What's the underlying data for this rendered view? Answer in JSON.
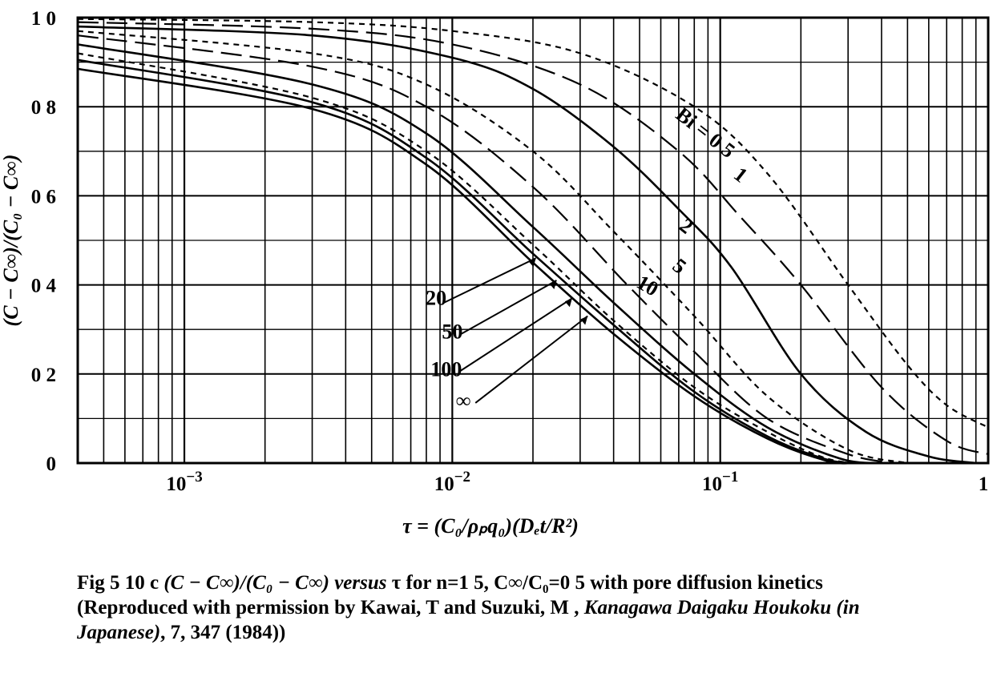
{
  "chart_data": {
    "type": "line",
    "x_scale": "log",
    "xlim": [
      0.0004,
      1
    ],
    "ylim": [
      0,
      1
    ],
    "x_tick_labels": [
      {
        "value": 0.001,
        "base": "10",
        "exp": "−3"
      },
      {
        "value": 0.01,
        "base": "10",
        "exp": "−2"
      },
      {
        "value": 0.1,
        "base": "10",
        "exp": "−1"
      },
      {
        "value": 1,
        "base": "1",
        "exp": ""
      }
    ],
    "y_tick_labels": [
      {
        "value": 0,
        "text": "0"
      },
      {
        "value": 0.2,
        "text": "0 2"
      },
      {
        "value": 0.4,
        "text": "0 4"
      },
      {
        "value": 0.6,
        "text": "0 6"
      },
      {
        "value": 0.8,
        "text": "0 8"
      },
      {
        "value": 1.0,
        "text": "1 0"
      }
    ],
    "xlabel": "τ = (C₀/ρₚq₀)(Dₑt/R²)",
    "ylabel": "(C − C∞)/(C₀ − C∞)",
    "grid": true,
    "series": [
      {
        "name": "Bi = 0 5",
        "style": "dashed-fine",
        "x": [
          0.0004,
          0.003,
          0.01,
          0.03,
          0.08,
          0.15,
          0.3,
          0.5,
          0.7,
          1.0
        ],
        "y": [
          0.997,
          0.99,
          0.97,
          0.92,
          0.8,
          0.65,
          0.4,
          0.22,
          0.13,
          0.08
        ]
      },
      {
        "name": "1",
        "style": "long-dash",
        "x": [
          0.0004,
          0.003,
          0.01,
          0.03,
          0.07,
          0.12,
          0.2,
          0.4,
          0.7,
          1.0
        ],
        "y": [
          0.99,
          0.975,
          0.94,
          0.85,
          0.7,
          0.55,
          0.4,
          0.17,
          0.05,
          0.02
        ]
      },
      {
        "name": "2",
        "style": "solid",
        "x": [
          0.0004,
          0.003,
          0.01,
          0.02,
          0.04,
          0.07,
          0.11,
          0.2,
          0.35,
          0.6,
          0.9
        ],
        "y": [
          0.98,
          0.96,
          0.91,
          0.84,
          0.71,
          0.57,
          0.44,
          0.2,
          0.07,
          0.015,
          0
        ]
      },
      {
        "name": "5",
        "style": "dashed-fine",
        "x": [
          0.0004,
          0.003,
          0.008,
          0.02,
          0.04,
          0.08,
          0.15,
          0.3,
          0.5
        ],
        "y": [
          0.97,
          0.92,
          0.85,
          0.7,
          0.52,
          0.33,
          0.15,
          0.03,
          0
        ]
      },
      {
        "name": "10",
        "style": "long-dash",
        "x": [
          0.0004,
          0.003,
          0.008,
          0.02,
          0.045,
          0.08,
          0.15,
          0.3,
          0.45
        ],
        "y": [
          0.96,
          0.89,
          0.8,
          0.62,
          0.4,
          0.25,
          0.1,
          0.02,
          0
        ]
      },
      {
        "name": "20",
        "style": "solid",
        "x": [
          0.0004,
          0.003,
          0.008,
          0.02,
          0.04,
          0.08,
          0.15,
          0.28,
          0.4
        ],
        "y": [
          0.94,
          0.85,
          0.74,
          0.53,
          0.36,
          0.2,
          0.08,
          0.01,
          0
        ]
      },
      {
        "name": "50",
        "style": "dashed-fine",
        "x": [
          0.0004,
          0.003,
          0.008,
          0.02,
          0.04,
          0.08,
          0.15,
          0.25,
          0.35
        ],
        "y": [
          0.92,
          0.82,
          0.7,
          0.49,
          0.32,
          0.17,
          0.07,
          0.01,
          0
        ]
      },
      {
        "name": "100",
        "style": "solid",
        "x": [
          0.0004,
          0.003,
          0.008,
          0.02,
          0.04,
          0.08,
          0.15,
          0.25,
          0.33
        ],
        "y": [
          0.905,
          0.81,
          0.685,
          0.47,
          0.31,
          0.16,
          0.06,
          0.008,
          0
        ]
      },
      {
        "name": "∞",
        "style": "solid",
        "x": [
          0.0004,
          0.003,
          0.008,
          0.02,
          0.04,
          0.08,
          0.15,
          0.25,
          0.32
        ],
        "y": [
          0.885,
          0.795,
          0.67,
          0.45,
          0.29,
          0.15,
          0.055,
          0.005,
          0
        ]
      }
    ],
    "curve_labels": [
      {
        "series": "Bi = 0 5",
        "text": "Bi = 0 5"
      },
      {
        "series": "1",
        "text": "1"
      },
      {
        "series": "2",
        "text": "2"
      },
      {
        "series": "5",
        "text": "5"
      },
      {
        "series": "10",
        "text": "10"
      },
      {
        "series": "20",
        "text": "20"
      },
      {
        "series": "50",
        "text": "50"
      },
      {
        "series": "100",
        "text": "100"
      },
      {
        "series": "∞",
        "text": "∞"
      }
    ]
  },
  "caption": {
    "line1_prefix": "Fig  5 10 c   ",
    "line1_formula": "(C − C∞)/(C₀ − C∞)",
    "line1_versus": " versus ",
    "line1_rest": " τ  for  n=1 5,  C∞/C₀=0 5  with  pore diffusion kinetics",
    "line2": "(Reproduced with permission by Kawai, T  and Suzuki, M , ",
    "line2_italic": "Kanagawa Daigaku Houkoku (in Japanese)",
    "line2_end": ", 7, 347 (1984))"
  }
}
